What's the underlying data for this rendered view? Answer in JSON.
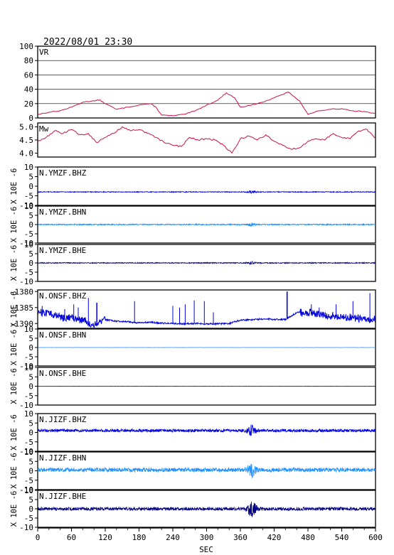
{
  "chart_data": {
    "type": "line",
    "title": "2022/08/01 23:30",
    "xlabel": "SEC",
    "xlim": [
      0,
      600
    ],
    "xticks": [
      0,
      60,
      120,
      180,
      240,
      300,
      360,
      420,
      480,
      540,
      600
    ],
    "ylabel_waveform": "X 10E -6",
    "colors": {
      "vr": "#cc1144",
      "mw": "#cc1144",
      "axis": "#000000",
      "dark_blue": "#000080",
      "blue": "#0000dd",
      "light_blue": "#1e90ff"
    },
    "panels": [
      {
        "id": "vr",
        "label": "VR",
        "ylim": [
          0,
          100
        ],
        "yticks": [
          0,
          20,
          40,
          60,
          80,
          100
        ],
        "grid": true,
        "x": [
          0,
          20,
          40,
          60,
          80,
          100,
          110,
          120,
          140,
          160,
          180,
          200,
          210,
          220,
          240,
          260,
          280,
          300,
          320,
          335,
          350,
          360,
          380,
          400,
          420,
          445,
          465,
          480,
          500,
          520,
          540,
          560,
          580,
          600
        ],
        "y": [
          5,
          8,
          10,
          15,
          22,
          24,
          25,
          20,
          12,
          15,
          18,
          20,
          15,
          4,
          3,
          5,
          10,
          18,
          25,
          35,
          28,
          15,
          18,
          22,
          28,
          36,
          24,
          5,
          10,
          12,
          13,
          10,
          9,
          6
        ]
      },
      {
        "id": "mw",
        "label": "Mw",
        "ylim": [
          3.85,
          5.15
        ],
        "yticks": [
          4.0,
          4.5,
          5.0
        ],
        "ytick_labels": [
          "4.0",
          "4.5",
          "5.0"
        ],
        "grid": false,
        "x": [
          0,
          15,
          30,
          45,
          60,
          75,
          90,
          105,
          120,
          135,
          150,
          165,
          180,
          195,
          210,
          225,
          240,
          255,
          270,
          285,
          300,
          315,
          330,
          345,
          360,
          375,
          390,
          405,
          420,
          435,
          450,
          465,
          480,
          495,
          510,
          525,
          540,
          555,
          570,
          585,
          600
        ],
        "y": [
          4.45,
          4.6,
          4.85,
          4.75,
          4.9,
          4.7,
          4.75,
          4.4,
          4.6,
          4.75,
          5.0,
          4.85,
          4.9,
          4.75,
          4.6,
          4.4,
          4.3,
          4.25,
          4.6,
          4.5,
          4.55,
          4.5,
          4.3,
          4.0,
          4.55,
          4.65,
          4.5,
          4.7,
          4.45,
          4.3,
          4.15,
          4.2,
          4.45,
          4.55,
          4.5,
          4.75,
          4.6,
          4.55,
          4.85,
          4.9,
          4.55
        ]
      },
      {
        "id": "ymzf-bhz",
        "label": "N.YMZF.BHZ",
        "ylim": [
          -10,
          10
        ],
        "yticks": [
          -10,
          -5,
          0,
          5,
          10
        ],
        "ytick_labels": [
          "-10",
          "-5",
          "0",
          "5",
          "10"
        ],
        "color": "#0000dd",
        "baseline": -3,
        "noise": 0.2,
        "events": [
          {
            "at": 380,
            "amp": 0.6
          }
        ]
      },
      {
        "id": "ymzf-bhn",
        "label": "N.YMZF.BHN",
        "ylim": [
          -10,
          10
        ],
        "yticks": [
          -10,
          -5,
          0,
          5,
          10
        ],
        "ytick_labels": [
          "-10",
          "-5",
          "0",
          "5",
          "10"
        ],
        "color": "#1e90ff",
        "baseline": 0,
        "noise": 0.3,
        "events": [
          {
            "at": 380,
            "amp": 0.8
          }
        ]
      },
      {
        "id": "ymzf-bhe",
        "label": "N.YMZF.BHE",
        "ylim": [
          -10,
          10
        ],
        "yticks": [
          -10,
          -5,
          0,
          5,
          10
        ],
        "ytick_labels": [
          "-10",
          "-5",
          "0",
          "5",
          "10"
        ],
        "color": "#000080",
        "baseline": 0,
        "noise": 0.25,
        "events": [
          {
            "at": 380,
            "amp": 0.7
          }
        ]
      },
      {
        "id": "onsf-bhz",
        "label": "N.ONSF.BHZ",
        "ylim": [
          -1391.5,
          -1379.5
        ],
        "yticks": [
          -1390,
          -1385,
          -1380
        ],
        "ytick_labels": [
          "-1390",
          "-1385",
          "-1380"
        ],
        "color": "#0000dd",
        "baseline": -1389,
        "x": [
          0,
          20,
          40,
          60,
          80,
          100,
          120,
          140,
          160,
          180,
          200,
          220,
          240,
          260,
          280,
          300,
          320,
          340,
          360,
          380,
          400,
          420,
          440,
          460,
          480,
          500,
          520,
          540,
          560,
          580,
          600
        ],
        "y": [
          -1386.5,
          -1387,
          -1388,
          -1388.3,
          -1389,
          -1390.5,
          -1388.8,
          -1389.3,
          -1389.5,
          -1389.8,
          -1389.6,
          -1389.9,
          -1390,
          -1390.1,
          -1390,
          -1390.1,
          -1390.1,
          -1390,
          -1388.9,
          -1388.8,
          -1388.6,
          -1388.7,
          -1388.7,
          -1386.6,
          -1386.5,
          -1387.2,
          -1387.6,
          -1388,
          -1388.2,
          -1388.6,
          -1388.9
        ],
        "spikes": [
          {
            "at": 8,
            "to": -1384.5
          },
          {
            "at": 35,
            "to": -1386
          },
          {
            "at": 48,
            "to": -1385.5
          },
          {
            "at": 64,
            "to": -1384
          },
          {
            "at": 72,
            "to": -1385
          },
          {
            "at": 90,
            "to": -1382
          },
          {
            "at": 105,
            "to": -1383.5
          },
          {
            "at": 172,
            "to": -1383
          },
          {
            "at": 240,
            "to": -1384.5
          },
          {
            "at": 252,
            "to": -1385
          },
          {
            "at": 262,
            "to": -1384
          },
          {
            "at": 278,
            "to": -1382.8
          },
          {
            "at": 296,
            "to": -1383
          },
          {
            "at": 312,
            "to": -1386.5
          },
          {
            "at": 443,
            "to": -1380
          },
          {
            "at": 486,
            "to": -1384
          },
          {
            "at": 500,
            "to": -1385
          },
          {
            "at": 530,
            "to": -1384
          },
          {
            "at": 560,
            "to": -1383
          },
          {
            "at": 590,
            "to": -1380.5
          }
        ]
      },
      {
        "id": "onsf-bhn",
        "label": "N.ONSF.BHN",
        "ylim": [
          -10,
          10
        ],
        "yticks": [
          -10,
          -5,
          0,
          5,
          10
        ],
        "ytick_labels": [
          "-10",
          "-5",
          "0",
          "5",
          "10"
        ],
        "color": "#1e90ff",
        "baseline": 0,
        "noise": 0.05,
        "events": []
      },
      {
        "id": "onsf-bhe",
        "label": "N.ONSF.BHE",
        "ylim": [
          -10,
          10
        ],
        "yticks": [
          -10,
          -5,
          0,
          5,
          10
        ],
        "ytick_labels": [
          "-10",
          "-5",
          "0",
          "5",
          "10"
        ],
        "color": "#000080",
        "baseline": 0,
        "noise": 0.05,
        "events": []
      },
      {
        "id": "jizf-bhz",
        "label": "N.JIZF.BHZ",
        "ylim": [
          -10,
          10
        ],
        "yticks": [
          -10,
          -5,
          0,
          5,
          10
        ],
        "ytick_labels": [
          "-10",
          "-5",
          "0",
          "5",
          "10"
        ],
        "color": "#0000dd",
        "baseline": 1,
        "noise": 0.8,
        "events": [
          {
            "at": 380,
            "amp": 2.5
          }
        ]
      },
      {
        "id": "jizf-bhn",
        "label": "N.JIZF.BHN",
        "ylim": [
          -10,
          10
        ],
        "yticks": [
          -10,
          -5,
          0,
          5,
          10
        ],
        "ytick_labels": [
          "-10",
          "-5",
          "0",
          "5",
          "10"
        ],
        "color": "#1e90ff",
        "baseline": 0.5,
        "noise": 1.1,
        "events": [
          {
            "at": 380,
            "amp": 3.0
          }
        ]
      },
      {
        "id": "jizf-bhe",
        "label": "N.JIZF.BHE",
        "ylim": [
          -10,
          10
        ],
        "yticks": [
          -10,
          -5,
          0,
          5,
          10
        ],
        "ytick_labels": [
          "-10",
          "-5",
          "0",
          "5",
          "10"
        ],
        "color": "#000080",
        "baseline": 0,
        "noise": 0.9,
        "events": [
          {
            "at": 380,
            "amp": 4.0
          }
        ]
      }
    ]
  }
}
